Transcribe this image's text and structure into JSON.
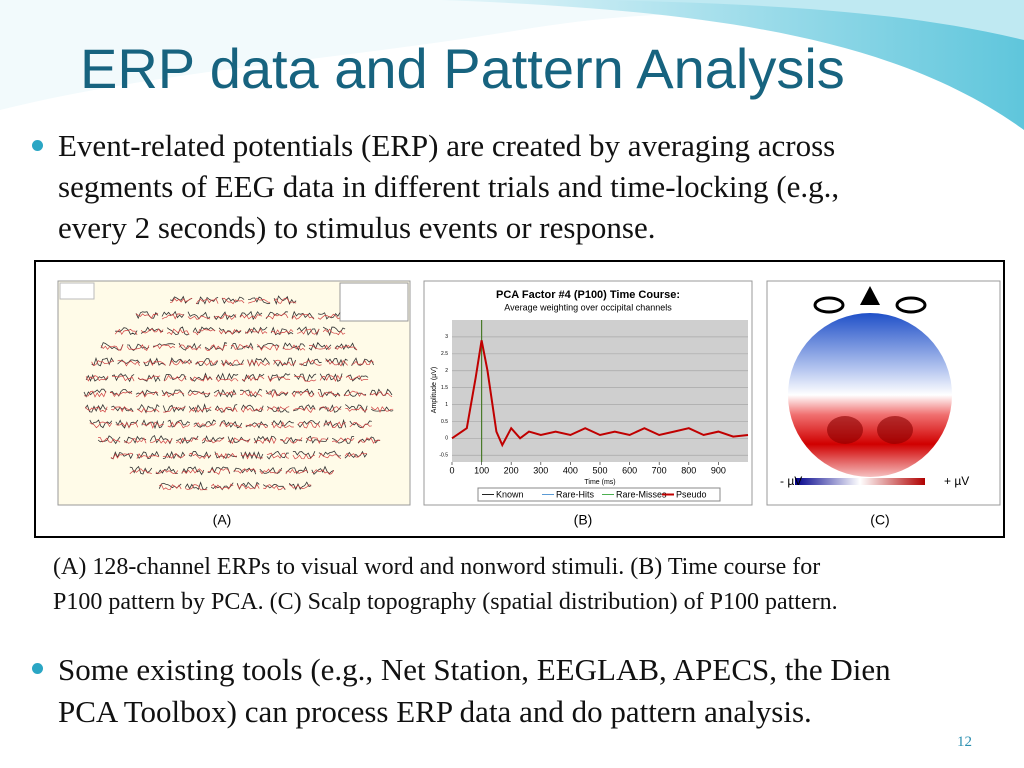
{
  "title": "ERP data and Pattern Analysis",
  "bullets": [
    {
      "lines": [
        "Event-related potentials (ERP) are created by averaging across",
        "segments of EEG data in different trials and time-locking (e.g.,",
        "every 2 seconds) to stimulus events or response."
      ]
    },
    {
      "lines": [
        "Some existing tools (e.g., Net Station, EEGLAB, APECS, the Dien",
        "PCA Toolbox) can process ERP data and do pattern analysis."
      ]
    }
  ],
  "figure": {
    "panel_labels": [
      "(A)",
      "(B)",
      "(C)"
    ],
    "caption_lines": [
      "(A) 128-channel ERPs to visual word and nonword stimuli. (B) Time course for",
      "P100 pattern by PCA. (C) Scalp topography (spatial distribution) of P100 pattern."
    ],
    "scalp": {
      "minus_label": "- µV",
      "plus_label": "+ µV"
    }
  },
  "chart_data": {
    "type": "line",
    "title": "PCA Factor #4 (P100) Time Course:",
    "subtitle": "Average weighting over occipital channels",
    "x_label": "Time (ms)",
    "y_label": "Amplitude (µV)",
    "x": [
      0,
      50,
      80,
      100,
      120,
      150,
      170,
      200,
      230,
      260,
      300,
      350,
      400,
      450,
      500,
      550,
      600,
      650,
      700,
      750,
      800,
      850,
      900,
      950,
      1000
    ],
    "series": [
      {
        "name": "Known",
        "color": "#222222"
      },
      {
        "name": "Rare-Hits",
        "color": "#5b9bd5"
      },
      {
        "name": "Rare-Misses",
        "color": "#4caf50"
      },
      {
        "name": "Pseudo",
        "color": "#c00000",
        "values": [
          0,
          0.3,
          1.8,
          2.9,
          2.0,
          0.2,
          -0.2,
          0.3,
          0,
          0.2,
          0.1,
          0.2,
          0.1,
          0.3,
          0.1,
          0.2,
          0.1,
          0.3,
          0.1,
          0.2,
          0.3,
          0.1,
          0.2,
          0.05,
          0.1
        ]
      }
    ],
    "xlim": [
      0,
      1000
    ],
    "xticks": [
      0,
      100,
      200,
      300,
      400,
      500,
      600,
      700,
      800,
      900
    ],
    "ylim": [
      -0.7,
      3.5
    ],
    "yticks": [
      -0.5,
      0,
      0.5,
      1,
      1.5,
      2,
      2.5,
      3
    ],
    "grid": true
  },
  "page_number": "12"
}
